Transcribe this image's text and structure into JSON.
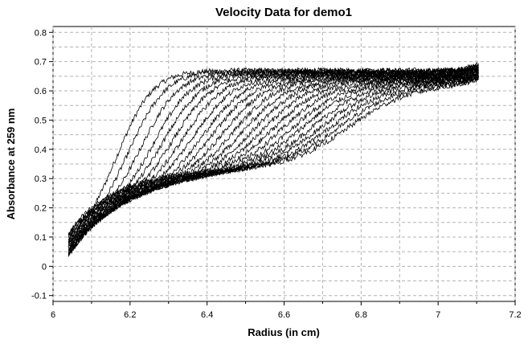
{
  "chart_data": {
    "type": "line",
    "title": "Velocity Data for demo1",
    "xlabel": "Radius (in cm)",
    "ylabel": "Absorbance at 259 nm",
    "xlim": [
      6.0,
      7.2
    ],
    "ylim": [
      -0.12,
      0.82
    ],
    "xticks": [
      "6",
      "6.2",
      "6.4",
      "6.6",
      "6.8",
      "7",
      "7.2"
    ],
    "yticks": [
      "-0.1",
      "0",
      "0.1",
      "0.2",
      "0.3",
      "0.4",
      "0.5",
      "0.6",
      "0.7",
      "0.8"
    ],
    "grid": true,
    "legend": "none",
    "meniscus_radius": 6.04,
    "bottom_radius": 7.105,
    "series_count": 24,
    "boundary_midpoints": [
      6.18,
      6.21,
      6.24,
      6.27,
      6.295,
      6.32,
      6.345,
      6.37,
      6.395,
      6.42,
      6.445,
      6.47,
      6.495,
      6.52,
      6.545,
      6.57,
      6.595,
      6.62,
      6.645,
      6.67,
      6.695,
      6.72,
      6.745,
      6.77
    ],
    "plateau_absorbance": [
      0.67,
      0.668,
      0.666,
      0.664,
      0.662,
      0.66,
      0.658,
      0.656,
      0.654,
      0.652,
      0.65,
      0.648,
      0.646,
      0.644,
      0.642,
      0.64,
      0.638,
      0.636,
      0.634,
      0.632,
      0.63,
      0.628,
      0.626,
      0.624
    ],
    "color": "#000000"
  }
}
